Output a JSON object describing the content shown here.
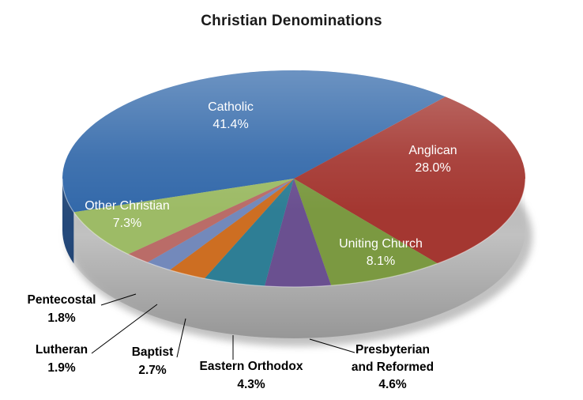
{
  "title": "Christian Denominations",
  "chart_data": {
    "type": "pie",
    "is_3d": true,
    "title": "Christian Denominations",
    "legend": "none",
    "direction": "clockwise",
    "start_angle_deg": 252,
    "unit": "%",
    "categories": [
      "Catholic",
      "Anglican",
      "Uniting Church",
      "Presbyterian and Reformed",
      "Eastern Orthodox",
      "Baptist",
      "Lutheran",
      "Pentecostal",
      "Other Christian"
    ],
    "values": [
      41.4,
      28.0,
      8.1,
      4.6,
      4.3,
      2.7,
      1.9,
      1.8,
      7.3
    ],
    "slices": [
      {
        "label": "Catholic",
        "pct": 41.4,
        "display": "41.4%",
        "color_top": "#3369AA",
        "color_side": "#24497B",
        "label_placement": "inside",
        "label_color": "#FFFFFF"
      },
      {
        "label": "Anglican",
        "pct": 28.0,
        "display": "28.0%",
        "color_top": "#A43731",
        "color_side": "#77231F",
        "label_placement": "inside",
        "label_color": "#FFFFFF"
      },
      {
        "label": "Uniting Church",
        "pct": 8.1,
        "display": "8.1%",
        "color_top": "#7B9941",
        "color_side": "#4E6326",
        "label_placement": "inside",
        "label_color": "#FFFFFF"
      },
      {
        "label": "Presbyterian and Reformed",
        "pct": 4.6,
        "display": "4.6%",
        "color_top": "#6A5090",
        "color_side": "#342947",
        "label_placement": "outside",
        "label_color": "#000000"
      },
      {
        "label": "Eastern Orthodox",
        "pct": 4.3,
        "display": "4.3%",
        "color_top": "#2E7E95",
        "color_side": "#1C5768",
        "label_placement": "outside",
        "label_color": "#000000"
      },
      {
        "label": "Baptist",
        "pct": 2.7,
        "display": "2.7%",
        "color_top": "#CD6E22",
        "color_side": "#8F4A13",
        "label_placement": "outside",
        "label_color": "#000000"
      },
      {
        "label": "Lutheran",
        "pct": 1.9,
        "display": "1.9%",
        "color_top": "#7389BB",
        "color_side": "#4F618D",
        "label_placement": "outside",
        "label_color": "#000000"
      },
      {
        "label": "Pentecostal",
        "pct": 1.8,
        "display": "1.8%",
        "color_top": "#BA6C68",
        "color_side": "#874C49",
        "label_placement": "outside",
        "label_color": "#000000"
      },
      {
        "label": "Other Christian",
        "pct": 7.3,
        "display": "7.3%",
        "color_top": "#9DBB66",
        "color_side": "#6F8C41",
        "label_placement": "inside",
        "label_color": "#FFFFFF"
      }
    ]
  }
}
